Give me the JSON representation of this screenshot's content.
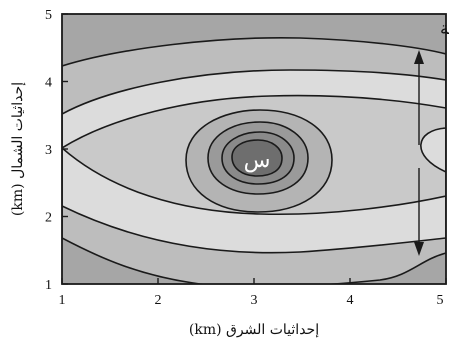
{
  "figure": {
    "x_axis": {
      "title": "إحداثيات الشرق (km)",
      "ticks": [
        "1",
        "2",
        "3",
        "4",
        "5"
      ]
    },
    "y_axis": {
      "title": "إحداثيات الشمال (km)",
      "ticks": [
        "1",
        "2",
        "3",
        "4",
        "5"
      ]
    },
    "labels": {
      "threshold": "العتبة",
      "center": "س"
    },
    "colors": {
      "outer": "#a6a6a6",
      "band_1": "#bdbdbd",
      "band_2": "#dcdcdc",
      "band_3": "#c9c9c9",
      "band_4": "#b4b4b4",
      "band_5": "#9a9a9a",
      "core": "#6e6e6e",
      "lines": "#1a1a1a"
    }
  }
}
